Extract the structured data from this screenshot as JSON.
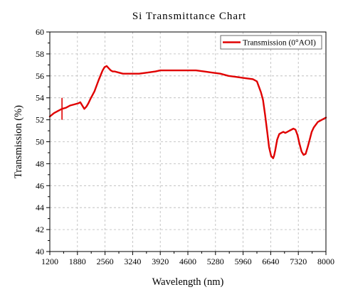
{
  "chart_data": {
    "type": "line",
    "title": "Si  Transmittance  Chart",
    "xlabel": "Wavelength (nm)",
    "ylabel": "Transmission (%)",
    "xlim": [
      1200,
      8000
    ],
    "ylim": [
      40,
      60
    ],
    "xticks": [
      1200,
      1880,
      2560,
      3240,
      3920,
      4600,
      5280,
      5960,
      6640,
      7320,
      8000
    ],
    "yticks": [
      40,
      42,
      44,
      46,
      48,
      50,
      52,
      54,
      56,
      58,
      60
    ],
    "grid": true,
    "legend_position": "top-right",
    "series": [
      {
        "name": "Transmission (0°AOI)",
        "color": "#e00000",
        "x": [
          1200,
          1300,
          1400,
          1500,
          1600,
          1700,
          1800,
          1900,
          1950,
          2000,
          2050,
          2100,
          2150,
          2200,
          2300,
          2400,
          2500,
          2550,
          2600,
          2650,
          2700,
          2750,
          2800,
          2900,
          3000,
          3200,
          3400,
          3600,
          3800,
          3920,
          4000,
          4200,
          4400,
          4600,
          4800,
          5000,
          5200,
          5400,
          5600,
          5800,
          6000,
          6200,
          6300,
          6350,
          6400,
          6450,
          6500,
          6550,
          6600,
          6650,
          6700,
          6720,
          6750,
          6800,
          6850,
          6900,
          6950,
          7000,
          7050,
          7100,
          7200,
          7250,
          7300,
          7350,
          7400,
          7450,
          7500,
          7550,
          7600,
          7650,
          7700,
          7800,
          7900,
          8000
        ],
        "y": [
          52.3,
          52.6,
          52.8,
          53.0,
          53.1,
          53.3,
          53.4,
          53.5,
          53.6,
          53.3,
          53.0,
          53.2,
          53.5,
          53.9,
          54.6,
          55.6,
          56.5,
          56.8,
          56.9,
          56.7,
          56.5,
          56.4,
          56.4,
          56.3,
          56.2,
          56.2,
          56.2,
          56.3,
          56.4,
          56.5,
          56.5,
          56.5,
          56.5,
          56.5,
          56.5,
          56.4,
          56.3,
          56.2,
          56.0,
          55.9,
          55.8,
          55.7,
          55.5,
          55.0,
          54.5,
          53.8,
          52.5,
          51.0,
          49.5,
          48.7,
          48.5,
          48.7,
          49.2,
          50.2,
          50.7,
          50.8,
          50.9,
          50.8,
          50.9,
          51.0,
          51.2,
          51.1,
          50.6,
          49.8,
          49.1,
          48.8,
          48.9,
          49.5,
          50.2,
          50.9,
          51.3,
          51.8,
          52.0,
          52.2
        ]
      }
    ],
    "error_bars": [
      {
        "x": 1500,
        "y": 53.0,
        "ymin": 52.0,
        "ymax": 54.0
      }
    ]
  }
}
